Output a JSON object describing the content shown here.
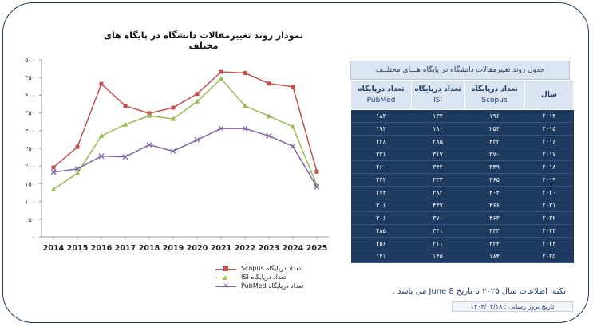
{
  "chart_data": {
    "type": "line",
    "title": "نمودار روند تغییرمقالات دانشگاه در پایگاه های مختلف",
    "x": [
      "2014",
      "2015",
      "2016",
      "2017",
      "2018",
      "2019",
      "2020",
      "2021",
      "2022",
      "2023",
      "2024",
      "2025"
    ],
    "ylim": [
      0,
      500
    ],
    "yticks": [
      "۰",
      "۵۰",
      "۱۰۰",
      "۱۵۰",
      "۲۰۰",
      "۲۵۰",
      "۳۰۰",
      "۳۵۰",
      "۴۰۰",
      "۴۵۰",
      "۵۰۰"
    ],
    "grid": false,
    "legend_position": "bottom",
    "series": [
      {
        "name": "تعداد درپایگاه Scopus",
        "color": "#c0504d",
        "values": [
          196,
          254,
          432,
          370,
          349,
          365,
          404,
          466,
          463,
          433,
          424,
          184
        ]
      },
      {
        "name": "تعداد درپایگاه ISI",
        "color": "#9bbb59",
        "values": [
          134,
          180,
          285,
          317,
          342,
          333,
          382,
          447,
          370,
          341,
          311,
          145
        ]
      },
      {
        "name": "تعداد درپایگاه PubMed",
        "color": "#8064a2",
        "values": [
          183,
          192,
          228,
          226,
          260,
          242,
          274,
          306,
          306,
          285,
          256,
          141
        ]
      }
    ]
  },
  "table": {
    "title": "جدول روند تغییرمقالات دانشگاه در پایگاه هـــای مختلــف",
    "headers": [
      {
        "fa": "تعداد درپایگاه",
        "en": "PubMed"
      },
      {
        "fa": "تعداد درپایگاه",
        "en": "ISI"
      },
      {
        "fa": "تعداد درپایگاه",
        "en": "Scopus"
      },
      {
        "fa": "سال",
        "en": ""
      }
    ],
    "rows": [
      [
        "۱۸۳",
        "۱۳۴",
        "۱۹۶",
        "۲۰۱۴"
      ],
      [
        "۱۹۲",
        "۱۸۰",
        "۲۵۴",
        "۲۰۱۵"
      ],
      [
        "۲۲۸",
        "۲۸۵",
        "۴۳۲",
        "۲۰۱۶"
      ],
      [
        "۲۲۶",
        "۳۱۷",
        "۳۷۰",
        "۲۰۱۷"
      ],
      [
        "۲۶۰",
        "۳۴۲",
        "۳۴۹",
        "۲۰۱۸"
      ],
      [
        "۲۴۲",
        "۳۳۳",
        "۳۶۵",
        "۲۰۱۹"
      ],
      [
        "۲۷۴",
        "۳۸۲",
        "۴۰۴",
        "۲۰۲۰"
      ],
      [
        "۳۰۶",
        "۴۴۷",
        "۴۶۶",
        "۲۰۲۱"
      ],
      [
        "۳۰۶",
        "۳۷۰",
        "۴۶۳",
        "۲۰۲۲"
      ],
      [
        "۲۸۵",
        "۳۴۱",
        "۴۳۳",
        "۲۰۲۳"
      ],
      [
        "۲۵۶",
        "۳۱۱",
        "۴۲۴",
        "۲۰۲۴"
      ],
      [
        "۱۴۱",
        "۱۴۵",
        "۱۸۴",
        "۲۰۲۵"
      ]
    ]
  },
  "note": "نکته: اطلاعات سال ۲۰۲۵ تا تاریخ 8 June می باشد .",
  "update": "تاریخ بروز رسانی : ۱۴۰۴/۰۳/۱۸"
}
